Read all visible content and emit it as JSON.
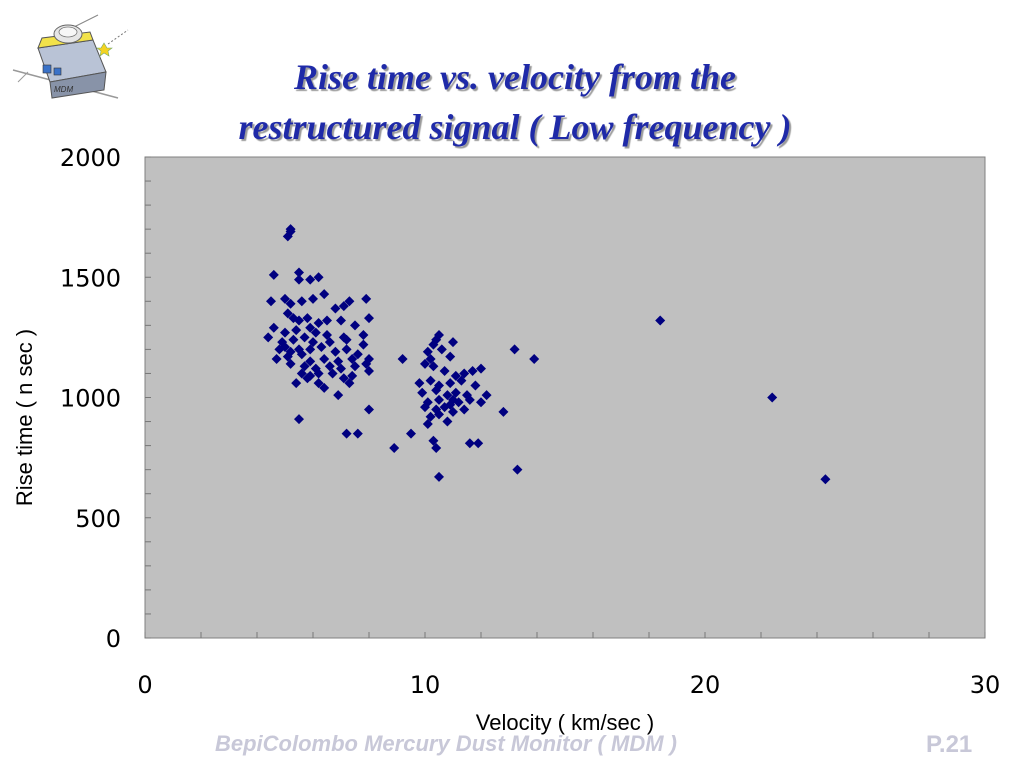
{
  "slide": {
    "title_line1": "Rise time vs. velocity from the",
    "title_line2": "restructured signal ( Low frequency )",
    "footer": "BepiColombo Mercury Dust Monitor ( MDM )",
    "page_number": "P.21",
    "logo_text": "MDM",
    "colors": {
      "title": "#1f2aa8",
      "marker": "#000080",
      "plot_bg": "#c0c0c0",
      "footer": "#c8c8d8"
    }
  },
  "chart_data": {
    "type": "scatter",
    "xlabel": "Velocity ( km/sec )",
    "ylabel": "Rise time ( n sec )",
    "xlim": [
      0,
      30
    ],
    "ylim": [
      0,
      2000
    ],
    "x_ticks": [
      0,
      10,
      20,
      30
    ],
    "y_ticks": [
      0,
      500,
      1000,
      1500,
      2000
    ],
    "grid": false,
    "marker": "diamond",
    "points": [
      [
        5.2,
        1700
      ],
      [
        5.1,
        1670
      ],
      [
        5.2,
        1690
      ],
      [
        4.6,
        1510
      ],
      [
        5.5,
        1520
      ],
      [
        5.5,
        1490
      ],
      [
        5.9,
        1490
      ],
      [
        6.2,
        1500
      ],
      [
        4.5,
        1400
      ],
      [
        5.0,
        1410
      ],
      [
        5.2,
        1390
      ],
      [
        5.6,
        1400
      ],
      [
        6.0,
        1410
      ],
      [
        6.4,
        1430
      ],
      [
        7.1,
        1380
      ],
      [
        7.3,
        1400
      ],
      [
        7.9,
        1410
      ],
      [
        6.8,
        1370
      ],
      [
        5.1,
        1350
      ],
      [
        5.3,
        1330
      ],
      [
        5.5,
        1320
      ],
      [
        5.8,
        1330
      ],
      [
        6.2,
        1310
      ],
      [
        6.5,
        1320
      ],
      [
        7.0,
        1320
      ],
      [
        7.5,
        1300
      ],
      [
        8.0,
        1330
      ],
      [
        4.6,
        1290
      ],
      [
        5.0,
        1270
      ],
      [
        5.4,
        1280
      ],
      [
        5.9,
        1290
      ],
      [
        6.1,
        1270
      ],
      [
        6.5,
        1260
      ],
      [
        7.1,
        1250
      ],
      [
        7.8,
        1260
      ],
      [
        4.4,
        1250
      ],
      [
        4.9,
        1230
      ],
      [
        5.3,
        1240
      ],
      [
        5.7,
        1250
      ],
      [
        6.0,
        1230
      ],
      [
        6.6,
        1230
      ],
      [
        7.2,
        1240
      ],
      [
        7.8,
        1220
      ],
      [
        4.8,
        1200
      ],
      [
        5.0,
        1210
      ],
      [
        5.2,
        1190
      ],
      [
        5.5,
        1200
      ],
      [
        5.9,
        1200
      ],
      [
        6.3,
        1210
      ],
      [
        6.8,
        1190
      ],
      [
        7.2,
        1200
      ],
      [
        7.6,
        1180
      ],
      [
        8.0,
        1160
      ],
      [
        4.7,
        1160
      ],
      [
        5.1,
        1170
      ],
      [
        5.6,
        1180
      ],
      [
        5.9,
        1150
      ],
      [
        6.4,
        1160
      ],
      [
        6.9,
        1150
      ],
      [
        7.4,
        1160
      ],
      [
        7.9,
        1140
      ],
      [
        5.2,
        1140
      ],
      [
        5.7,
        1130
      ],
      [
        6.1,
        1120
      ],
      [
        6.6,
        1130
      ],
      [
        7.0,
        1120
      ],
      [
        7.5,
        1130
      ],
      [
        8.0,
        1110
      ],
      [
        5.6,
        1100
      ],
      [
        5.9,
        1090
      ],
      [
        6.2,
        1100
      ],
      [
        6.7,
        1100
      ],
      [
        7.1,
        1080
      ],
      [
        7.4,
        1090
      ],
      [
        5.4,
        1060
      ],
      [
        5.8,
        1080
      ],
      [
        6.2,
        1060
      ],
      [
        6.4,
        1040
      ],
      [
        6.9,
        1010
      ],
      [
        7.3,
        1060
      ],
      [
        8.0,
        950
      ],
      [
        5.5,
        910
      ],
      [
        7.2,
        850
      ],
      [
        7.6,
        850
      ],
      [
        10.1,
        1190
      ],
      [
        10.3,
        1220
      ],
      [
        10.4,
        1240
      ],
      [
        10.5,
        1260
      ],
      [
        10.2,
        1160
      ],
      [
        10.6,
        1200
      ],
      [
        10.9,
        1170
      ],
      [
        11.0,
        1230
      ],
      [
        9.2,
        1160
      ],
      [
        10.0,
        1140
      ],
      [
        10.3,
        1130
      ],
      [
        10.7,
        1110
      ],
      [
        11.1,
        1090
      ],
      [
        11.4,
        1100
      ],
      [
        11.7,
        1110
      ],
      [
        12.0,
        1120
      ],
      [
        9.8,
        1060
      ],
      [
        10.2,
        1070
      ],
      [
        10.5,
        1050
      ],
      [
        10.9,
        1060
      ],
      [
        11.3,
        1070
      ],
      [
        11.8,
        1050
      ],
      [
        9.9,
        1020
      ],
      [
        10.4,
        1030
      ],
      [
        10.8,
        1010
      ],
      [
        11.1,
        1020
      ],
      [
        11.5,
        1010
      ],
      [
        12.2,
        1010
      ],
      [
        11.0,
        990
      ],
      [
        10.1,
        980
      ],
      [
        10.5,
        990
      ],
      [
        10.9,
        970
      ],
      [
        11.2,
        980
      ],
      [
        11.6,
        990
      ],
      [
        12.0,
        980
      ],
      [
        10.0,
        960
      ],
      [
        10.4,
        950
      ],
      [
        10.7,
        960
      ],
      [
        11.0,
        940
      ],
      [
        11.4,
        950
      ],
      [
        10.2,
        920
      ],
      [
        10.5,
        930
      ],
      [
        10.8,
        900
      ],
      [
        10.1,
        890
      ],
      [
        12.8,
        940
      ],
      [
        9.5,
        850
      ],
      [
        10.3,
        820
      ],
      [
        10.4,
        790
      ],
      [
        8.9,
        790
      ],
      [
        11.6,
        810
      ],
      [
        11.9,
        810
      ],
      [
        13.2,
        1200
      ],
      [
        13.9,
        1160
      ],
      [
        13.3,
        700
      ],
      [
        10.5,
        670
      ],
      [
        18.4,
        1320
      ],
      [
        22.4,
        1000
      ],
      [
        24.3,
        660
      ]
    ]
  }
}
